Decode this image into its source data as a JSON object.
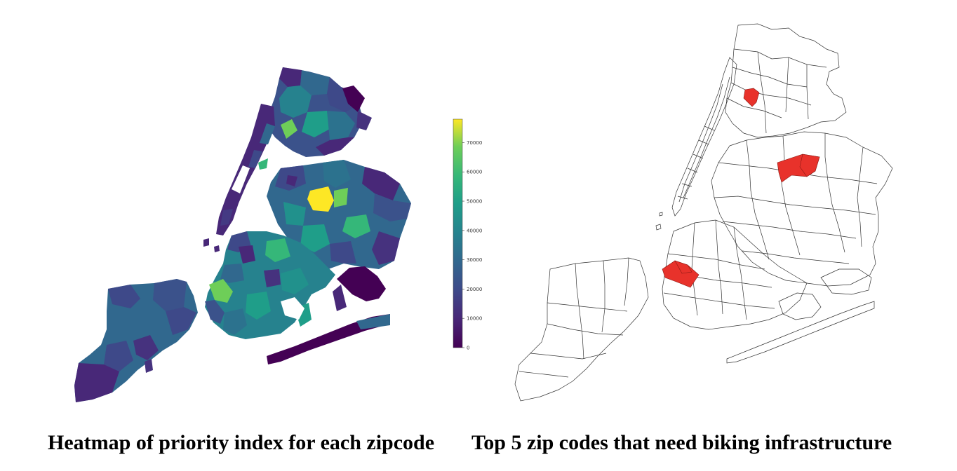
{
  "captions": {
    "left": "Heatmap of priority index for each zipcode",
    "right": "Top 5 zip codes that need biking infrastructure"
  },
  "colorbar": {
    "colormap": "viridis",
    "min": 0,
    "max": 78000,
    "ticks": [
      "0",
      "10000",
      "20000",
      "30000",
      "40000",
      "50000",
      "60000",
      "70000"
    ]
  },
  "colors": {
    "highlight": "#e8322b",
    "outline": "#333333",
    "background": "#ffffff"
  },
  "maps": {
    "left": {
      "type": "choropleth",
      "region": "New York City zip codes",
      "legend_position": "right"
    },
    "right": {
      "type": "outline",
      "region": "New York City zip codes",
      "highlighted_count": 5
    }
  }
}
